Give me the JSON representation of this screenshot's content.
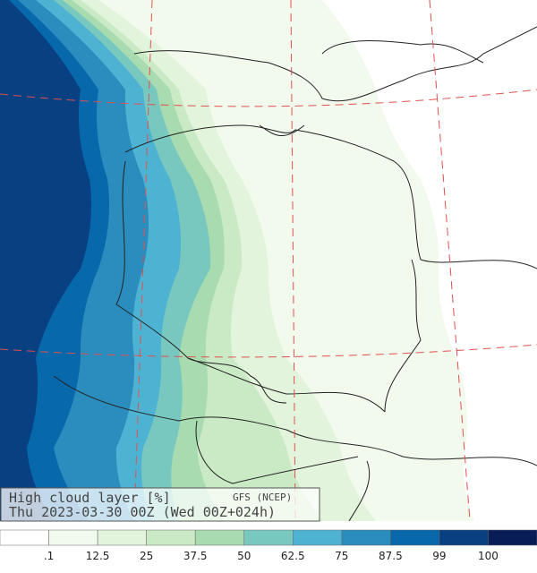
{
  "title": "High cloud layer  [%]",
  "source": "GFS (NCEP)",
  "subtitle": "Thu 2023-03-30 00Z (Wed 00Z+024h)",
  "legend": {
    "colors": [
      "#ffffff",
      "#f2faee",
      "#e2f4dc",
      "#c9eac4",
      "#a8dcb0",
      "#78c8bf",
      "#4eb3d3",
      "#2b8cbe",
      "#0868ac",
      "#084081",
      "#081d58"
    ],
    "labels": [
      ".1",
      "12.5",
      "25",
      "37.5",
      "50",
      "62.5",
      "75",
      "87.5",
      "99",
      "100"
    ]
  }
}
